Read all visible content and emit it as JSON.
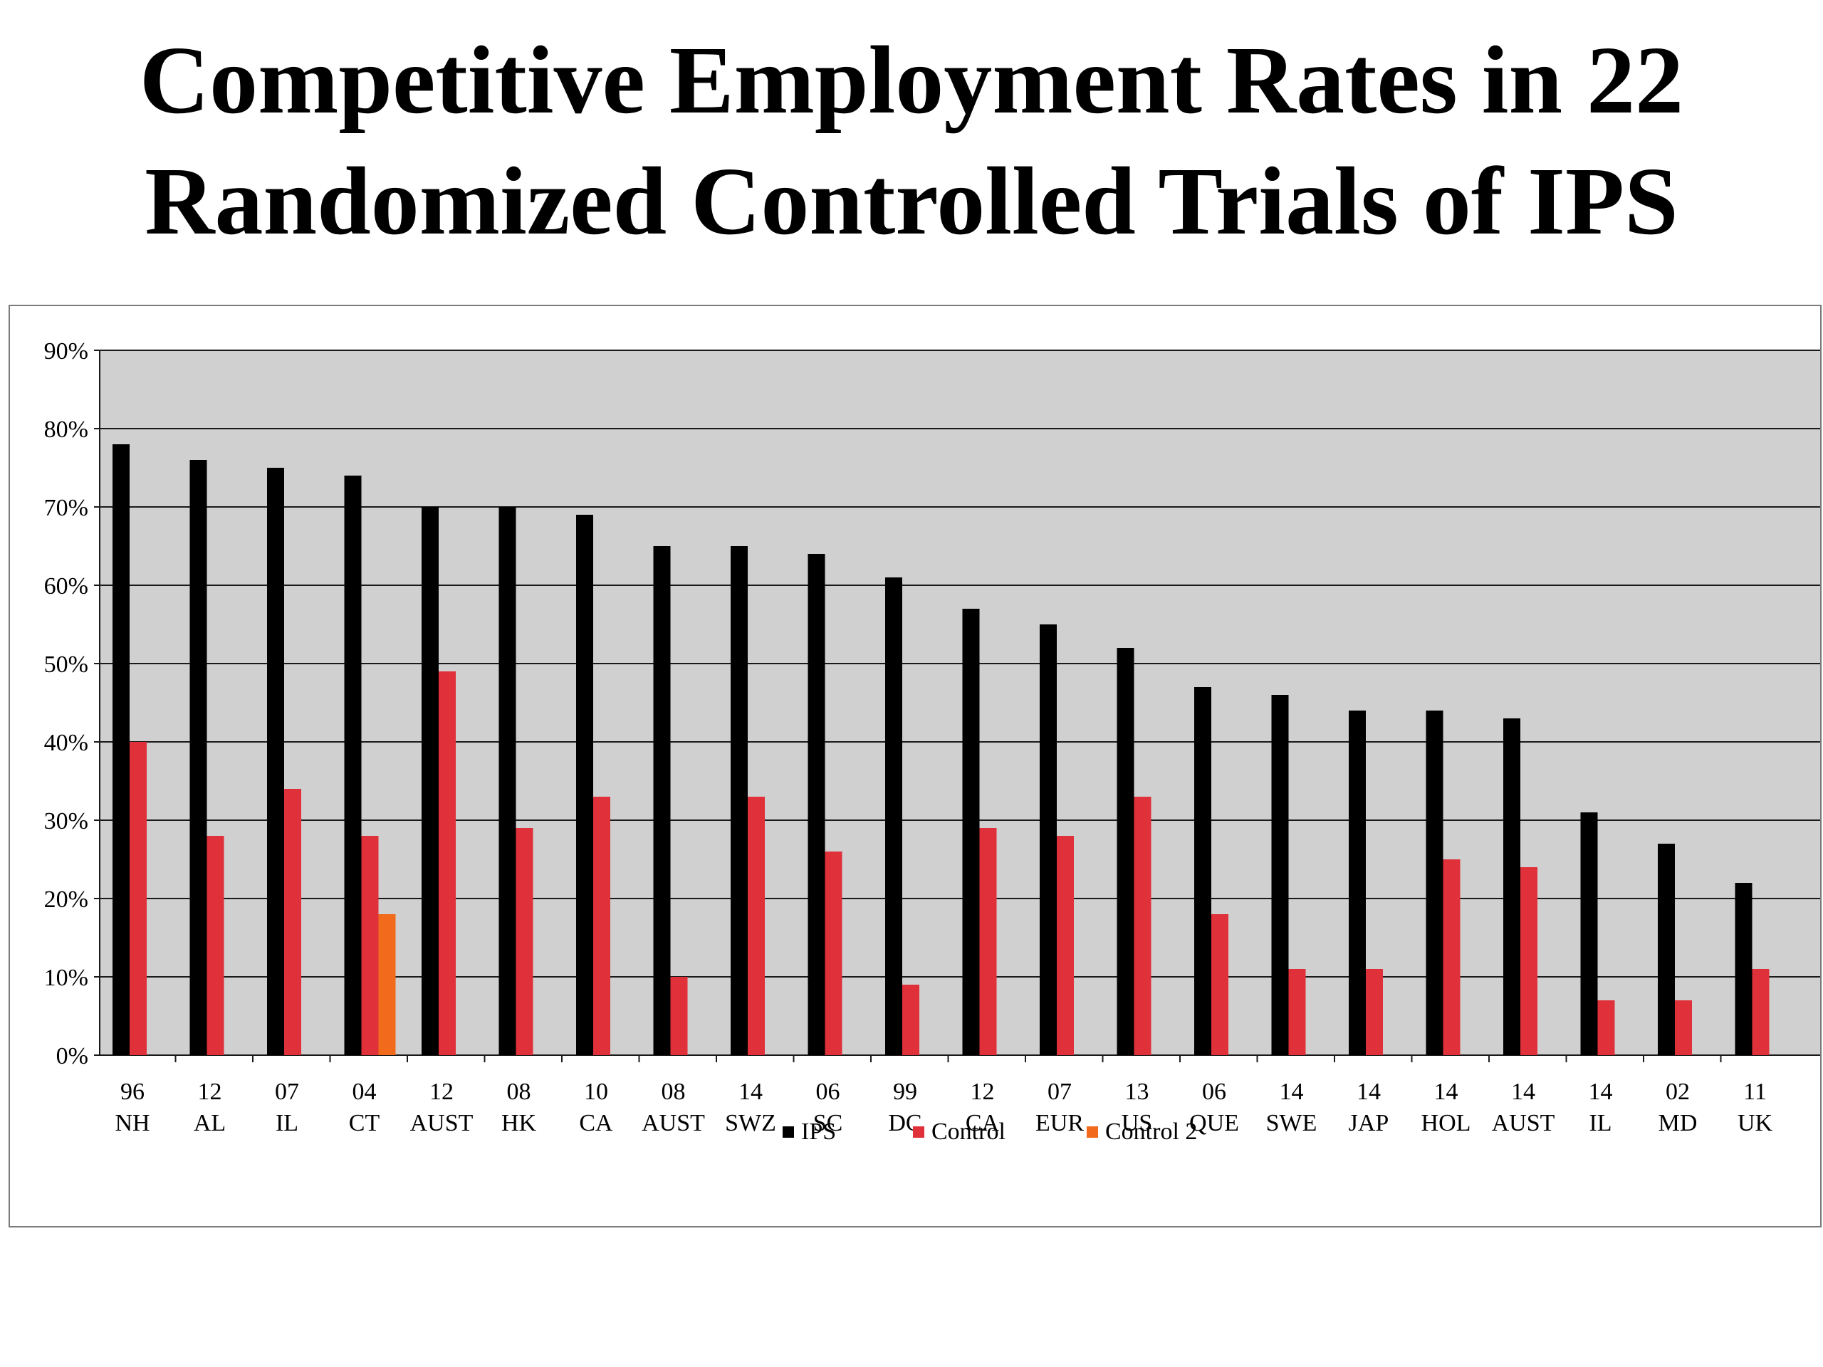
{
  "title_lines": [
    "Competitive Employment Rates in 22",
    "Randomized Controlled Trials of IPS"
  ],
  "chart_data": {
    "type": "bar",
    "title": "Competitive Employment Rates in 22 Randomized Controlled Trials of IPS",
    "xlabel": "",
    "ylabel": "",
    "ylim": [
      0,
      90
    ],
    "yticks": [
      "0%",
      "10%",
      "20%",
      "30%",
      "40%",
      "50%",
      "60%",
      "70%",
      "80%",
      "90%"
    ],
    "grid": true,
    "legend_position": "bottom",
    "categories": [
      [
        "96",
        "NH"
      ],
      [
        "12",
        "AL"
      ],
      [
        "07",
        "IL"
      ],
      [
        "04",
        "CT"
      ],
      [
        "12",
        "AUST"
      ],
      [
        "08",
        "HK"
      ],
      [
        "10",
        "CA"
      ],
      [
        "08",
        "AUST"
      ],
      [
        "14",
        "SWZ"
      ],
      [
        "06",
        "SC"
      ],
      [
        "99",
        "DC"
      ],
      [
        "12",
        "CA"
      ],
      [
        "07",
        "EUR"
      ],
      [
        "13",
        "US"
      ],
      [
        "06",
        "QUE"
      ],
      [
        "14",
        "SWE"
      ],
      [
        "14",
        "JAP"
      ],
      [
        "14",
        "HOL"
      ],
      [
        "14",
        "AUST"
      ],
      [
        "14",
        "IL"
      ],
      [
        "02",
        "MD"
      ],
      [
        "11",
        "UK"
      ]
    ],
    "series": [
      {
        "name": "IPS",
        "color": "#000000",
        "values": [
          78,
          76,
          75,
          74,
          70,
          70,
          69,
          65,
          65,
          64,
          61,
          57,
          55,
          52,
          47,
          46,
          44,
          44,
          43,
          31,
          27,
          22
        ]
      },
      {
        "name": "Control",
        "color": "#e0303a",
        "values": [
          40,
          28,
          34,
          28,
          49,
          29,
          33,
          10,
          33,
          26,
          9,
          29,
          28,
          33,
          18,
          11,
          11,
          25,
          24,
          7,
          7,
          11
        ]
      },
      {
        "name": "Control 2",
        "color": "#f26a1b",
        "values": [
          null,
          null,
          null,
          18,
          null,
          null,
          null,
          null,
          null,
          null,
          null,
          null,
          null,
          null,
          null,
          null,
          null,
          null,
          null,
          null,
          null,
          null
        ]
      }
    ],
    "plot_background": "#d0d0d0"
  }
}
